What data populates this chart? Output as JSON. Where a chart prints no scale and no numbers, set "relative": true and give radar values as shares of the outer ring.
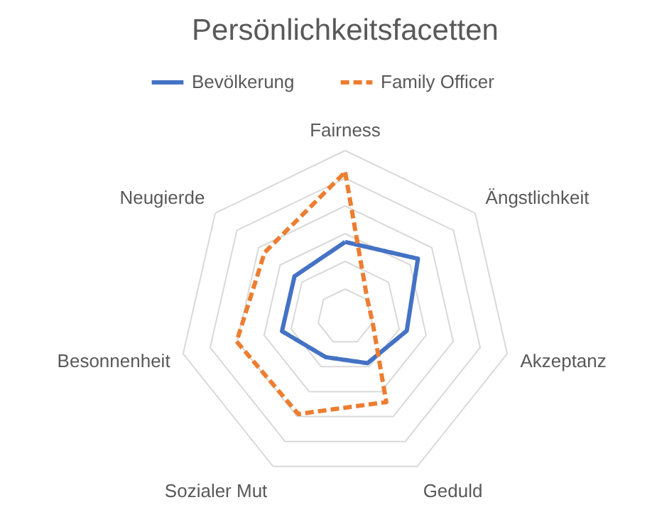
{
  "chart_data": {
    "type": "radar",
    "title": "Persönlichkeitsfacetten",
    "relative": true,
    "grid": true,
    "legend": "top",
    "categories": [
      "Fairness",
      "Ängstlichkeit",
      "Akzeptanz",
      "Geduld",
      "Sozialer Mut",
      "Besonnenheit",
      "Neugierde"
    ],
    "series": [
      {
        "name": "Bevölkerung",
        "color": "#4472c4",
        "line_style": "solid",
        "values": [
          0.45,
          0.56,
          0.38,
          0.31,
          0.27,
          0.39,
          0.39
        ]
      },
      {
        "name": "Family Officer",
        "color": "#ed7d31",
        "line_style": "dashed",
        "values": [
          0.87,
          0.17,
          0.17,
          0.57,
          0.65,
          0.67,
          0.62
        ]
      }
    ]
  }
}
